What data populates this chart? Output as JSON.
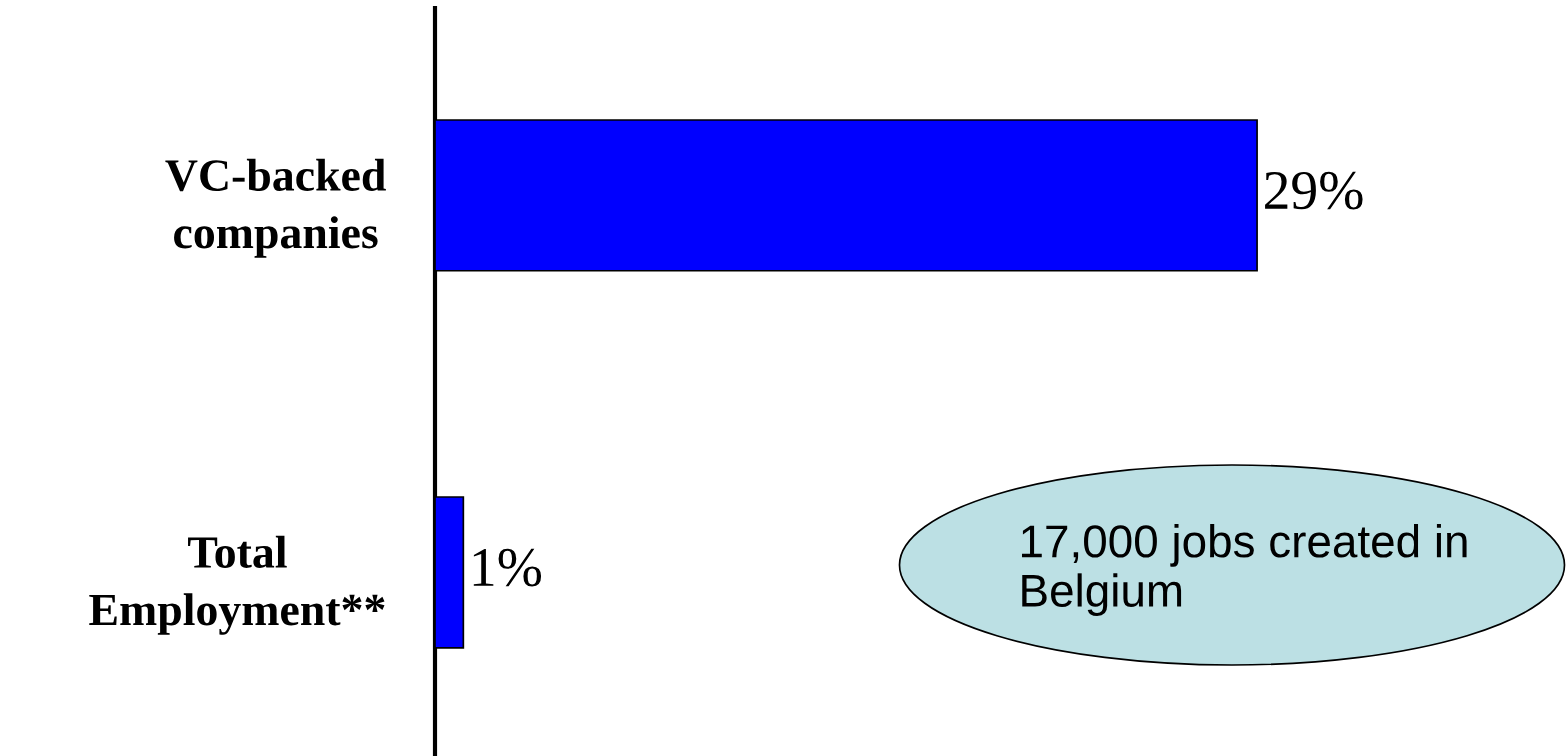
{
  "chart_data": {
    "type": "bar",
    "orientation": "horizontal",
    "categories": [
      "VC-backed\ncompanies",
      "Total\nEmployment**"
    ],
    "values": [
      29,
      1
    ],
    "color": "#0000ff",
    "value_labels": [
      "29%",
      "1%"
    ],
    "tick_labels": "y",
    "annotations": [
      "17,000 jobs created in\nBelgium"
    ]
  }
}
